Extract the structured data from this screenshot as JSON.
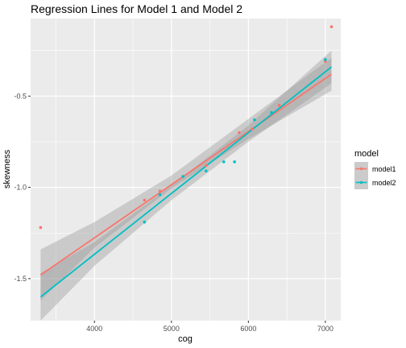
{
  "chart_data": {
    "type": "scatter",
    "title": "Regression Lines for Model 1 and Model 2",
    "xlabel": "cog",
    "ylabel": "skewness",
    "xlim": [
      3170,
      7200
    ],
    "ylim": [
      -1.73,
      -0.075
    ],
    "x_ticks": [
      4000,
      5000,
      6000,
      7000
    ],
    "x_tick_labels": [
      "4000",
      "5000",
      "6000",
      "7000"
    ],
    "y_ticks": [
      -1.5,
      -1.0,
      -0.5
    ],
    "y_tick_labels": [
      "-1.5",
      "-1.0",
      "-0.5"
    ],
    "grid": true,
    "legend_position": "right",
    "legend_title": "model",
    "series": [
      {
        "name": "model1",
        "color": "#F8766D",
        "points": [
          [
            3300,
            -1.22
          ],
          [
            4650,
            -1.07
          ],
          [
            4850,
            -1.02
          ],
          [
            5450,
            -0.88
          ],
          [
            5880,
            -0.7
          ],
          [
            6050,
            -0.68
          ],
          [
            6400,
            -0.55
          ],
          [
            7000,
            -0.31
          ],
          [
            7080,
            -0.12
          ]
        ],
        "fit": {
          "x": [
            3300,
            7080
          ],
          "y": [
            -1.48,
            -0.38
          ]
        },
        "band": {
          "x": [
            3300,
            4000,
            5000,
            6000,
            7080
          ],
          "lower": [
            -1.62,
            -1.33,
            -1.005,
            -0.735,
            -0.47
          ],
          "upper": [
            -1.34,
            -1.19,
            -0.935,
            -0.625,
            -0.29
          ]
        }
      },
      {
        "name": "model2",
        "color": "#00BFC4",
        "points": [
          [
            4650,
            -1.19
          ],
          [
            4850,
            -1.04
          ],
          [
            5150,
            -0.94
          ],
          [
            5450,
            -0.91
          ],
          [
            5680,
            -0.86
          ],
          [
            5820,
            -0.86
          ],
          [
            6080,
            -0.63
          ],
          [
            6300,
            -0.59
          ],
          [
            7000,
            -0.3
          ]
        ],
        "fit": {
          "x": [
            3300,
            7080
          ],
          "y": [
            -1.6,
            -0.34
          ]
        },
        "band": {
          "x": [
            3300,
            4000,
            5000,
            6000,
            7080
          ],
          "lower": [
            -1.73,
            -1.43,
            -1.07,
            -0.75,
            -0.43
          ],
          "upper": [
            -1.47,
            -1.3,
            -0.99,
            -0.66,
            -0.25
          ]
        }
      }
    ]
  }
}
